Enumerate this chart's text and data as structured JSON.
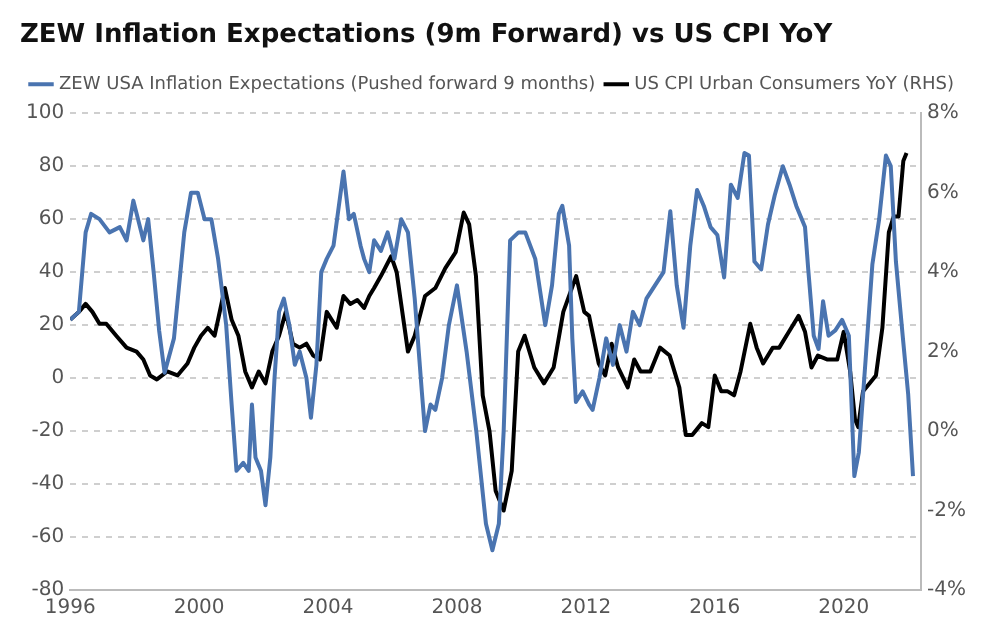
{
  "chart_data": {
    "type": "line",
    "title": "ZEW Inflation Expectations (9m Forward) vs US CPI YoY",
    "xlim": [
      1996,
      2022.4
    ],
    "xticks": [
      1996,
      2000,
      2004,
      2008,
      2012,
      2016,
      2020
    ],
    "ylim": [
      -80,
      100
    ],
    "yticks": [
      -80,
      -60,
      -40,
      -20,
      0,
      20,
      40,
      60,
      80,
      100
    ],
    "y2lim": [
      -4,
      8
    ],
    "y2ticks": [
      {
        "value": -4,
        "label": "-4%"
      },
      {
        "value": -2,
        "label": "-2%"
      },
      {
        "value": 0,
        "label": "0%"
      },
      {
        "value": 2,
        "label": "2%"
      },
      {
        "value": 4,
        "label": "4%"
      },
      {
        "value": 6,
        "label": "6%"
      },
      {
        "value": 8,
        "label": "8%"
      }
    ],
    "grid": "y",
    "legend": "top left",
    "marker": "none",
    "line_style": "solid",
    "series": [
      {
        "name": "ZEW USA Inflation Expectations (Pushed forward 9 months)",
        "color": "#4a74b0",
        "x": [
          1996.0,
          1996.27,
          1996.48,
          1996.65,
          1996.91,
          1997.22,
          1997.54,
          1997.75,
          1997.96,
          1998.27,
          1998.42,
          1998.59,
          1998.76,
          1998.93,
          1999.22,
          1999.54,
          1999.75,
          1999.96,
          2000.17,
          2000.38,
          2000.59,
          2000.84,
          2001.01,
          2001.16,
          2001.37,
          2001.54,
          2001.64,
          2001.75,
          2001.92,
          2002.06,
          2002.21,
          2002.34,
          2002.48,
          2002.63,
          2002.8,
          2002.97,
          2003.12,
          2003.33,
          2003.47,
          2003.64,
          2003.79,
          2003.96,
          2004.17,
          2004.48,
          2004.65,
          2004.8,
          2005.01,
          2005.12,
          2005.28,
          2005.43,
          2005.64,
          2005.85,
          2006.06,
          2006.27,
          2006.48,
          2006.69,
          2006.91,
          2007.01,
          2007.18,
          2007.33,
          2007.54,
          2007.75,
          2008.0,
          2008.3,
          2008.6,
          2008.9,
          2009.1,
          2009.3,
          2009.45,
          2009.65,
          2009.91,
          2010.12,
          2010.43,
          2010.74,
          2010.95,
          2011.16,
          2011.27,
          2011.48,
          2011.58,
          2011.69,
          2011.9,
          2012.1,
          2012.21,
          2012.42,
          2012.63,
          2012.84,
          2013.05,
          2013.26,
          2013.46,
          2013.67,
          2013.88,
          2014.41,
          2014.62,
          2014.82,
          2015.03,
          2015.24,
          2015.45,
          2015.66,
          2015.87,
          2016.08,
          2016.29,
          2016.5,
          2016.71,
          2016.92,
          2017.06,
          2017.23,
          2017.44,
          2017.65,
          2017.86,
          2018.11,
          2018.32,
          2018.53,
          2018.8,
          2018.9,
          2019.07,
          2019.22,
          2019.36,
          2019.53,
          2019.74,
          2019.95,
          2020.16,
          2020.33,
          2020.47,
          2020.68,
          2020.89,
          2021.1,
          2021.31,
          2021.46,
          2021.62,
          2021.83,
          2022.0,
          2022.15
        ],
        "values": [
          22,
          25,
          55,
          62,
          60,
          55,
          57,
          52,
          67,
          52,
          60,
          40,
          18,
          2,
          15,
          55,
          70,
          70,
          60,
          60,
          45,
          20,
          -10,
          -35,
          -32,
          -35,
          -10,
          -30,
          -35,
          -48,
          -30,
          0,
          25,
          30,
          20,
          5,
          10,
          0,
          -15,
          5,
          40,
          45,
          50,
          78,
          60,
          62,
          50,
          45,
          40,
          52,
          48,
          55,
          45,
          60,
          55,
          30,
          -5,
          -20,
          -10,
          -12,
          0,
          20,
          35,
          10,
          -20,
          -55,
          -65,
          -55,
          -20,
          52,
          55,
          55,
          45,
          20,
          35,
          62,
          65,
          50,
          15,
          -9,
          -5,
          -10,
          -12,
          0,
          15,
          5,
          20,
          10,
          25,
          20,
          30,
          40,
          63,
          35,
          19,
          50,
          71,
          65,
          57,
          54,
          38,
          73,
          68,
          85,
          84,
          44,
          41,
          58,
          69,
          80,
          73,
          65,
          57,
          41,
          16,
          11,
          29,
          16,
          18,
          22,
          16,
          -37,
          -28,
          7,
          43,
          60,
          84,
          80,
          44,
          16,
          -6,
          -37
        ]
      },
      {
        "name": "US CPI Urban Consumers YoY (RHS)",
        "color": "#000000",
        "axis": "y2",
        "x": [
          1996.0,
          1996.27,
          1996.48,
          1996.69,
          1996.91,
          1997.12,
          1997.43,
          1997.75,
          1998.06,
          1998.27,
          1998.48,
          1998.69,
          1999.01,
          1999.33,
          1999.64,
          1999.85,
          2000.06,
          2000.27,
          2000.48,
          2000.8,
          2001.01,
          2001.22,
          2001.43,
          2001.64,
          2001.85,
          2002.06,
          2002.27,
          2002.48,
          2002.69,
          2002.91,
          2003.12,
          2003.33,
          2003.54,
          2003.75,
          2003.96,
          2004.27,
          2004.48,
          2004.69,
          2004.91,
          2005.12,
          2005.28,
          2005.43,
          2005.64,
          2005.96,
          2006.13,
          2006.27,
          2006.48,
          2006.69,
          2007.01,
          2007.33,
          2007.64,
          2007.96,
          2008.21,
          2008.38,
          2008.59,
          2008.8,
          2009.01,
          2009.2,
          2009.45,
          2009.7,
          2009.9,
          2010.1,
          2010.4,
          2010.7,
          2011.0,
          2011.3,
          2011.7,
          2011.95,
          2012.1,
          2012.4,
          2012.6,
          2012.8,
          2013.0,
          2013.3,
          2013.5,
          2013.7,
          2014.0,
          2014.3,
          2014.6,
          2014.9,
          2015.1,
          2015.3,
          2015.6,
          2015.8,
          2016.0,
          2016.2,
          2016.4,
          2016.6,
          2016.8,
          2017.1,
          2017.3,
          2017.5,
          2017.8,
          2018.0,
          2018.3,
          2018.6,
          2018.8,
          2019.0,
          2019.2,
          2019.5,
          2019.8,
          2020.0,
          2020.2,
          2020.35,
          2020.45,
          2020.6,
          2020.8,
          2021.0,
          2021.2,
          2021.4,
          2021.55,
          2021.7,
          2021.85,
          2021.95
        ],
        "values": [
          2.8,
          3.0,
          3.2,
          3.0,
          2.7,
          2.7,
          2.4,
          2.1,
          2.0,
          1.8,
          1.4,
          1.3,
          1.5,
          1.4,
          1.7,
          2.1,
          2.4,
          2.6,
          2.4,
          3.6,
          2.8,
          2.4,
          1.5,
          1.1,
          1.5,
          1.2,
          2.0,
          2.4,
          3.0,
          2.2,
          2.1,
          2.2,
          1.9,
          1.8,
          3.0,
          2.6,
          3.4,
          3.2,
          3.3,
          3.1,
          3.4,
          3.6,
          3.9,
          4.4,
          4.0,
          3.2,
          2.0,
          2.4,
          3.4,
          3.6,
          4.1,
          4.5,
          5.5,
          5.2,
          3.9,
          0.9,
          0.0,
          -1.5,
          -2.0,
          -1.0,
          2.0,
          2.4,
          1.6,
          1.2,
          1.6,
          3.0,
          3.9,
          3.0,
          2.9,
          1.7,
          1.4,
          2.2,
          1.6,
          1.1,
          1.8,
          1.5,
          1.5,
          2.1,
          1.9,
          1.1,
          -0.1,
          -0.1,
          0.2,
          0.1,
          1.4,
          1.0,
          1.0,
          0.9,
          1.5,
          2.7,
          2.1,
          1.7,
          2.1,
          2.1,
          2.5,
          2.9,
          2.5,
          1.6,
          1.9,
          1.8,
          1.8,
          2.5,
          1.5,
          0.3,
          0.1,
          1.0,
          1.2,
          1.4,
          2.6,
          5.0,
          5.4,
          5.4,
          6.8,
          7.0
        ]
      }
    ]
  }
}
